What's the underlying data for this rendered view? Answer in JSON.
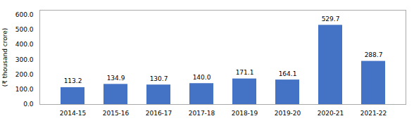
{
  "chart_data": {
    "type": "bar",
    "categories": [
      "2014-15",
      "2015-16",
      "2016-17",
      "2017-18",
      "2018-19",
      "2019-20",
      "2020-21",
      "2021-22"
    ],
    "values": [
      113.2,
      134.9,
      130.7,
      140.0,
      171.1,
      164.1,
      529.7,
      288.7
    ],
    "value_labels": [
      "113.2",
      "134.9",
      "130.7",
      "140.0",
      "171.1",
      "164.1",
      "529.7",
      "288.7"
    ],
    "color": "#4472C4",
    "ylabel": "(₹ thousand crore)",
    "ylim": [
      0,
      630
    ],
    "yticks": [
      {
        "value": 0,
        "label": "0.0"
      },
      {
        "value": 100,
        "label": "100.0"
      },
      {
        "value": 200,
        "label": "200.0"
      },
      {
        "value": 300,
        "label": "300.0"
      },
      {
        "value": 400,
        "label": "400.0"
      },
      {
        "value": 500,
        "label": "500.0"
      },
      {
        "value": 600,
        "label": "600.0"
      }
    ],
    "grid": false,
    "data_labels": true
  }
}
